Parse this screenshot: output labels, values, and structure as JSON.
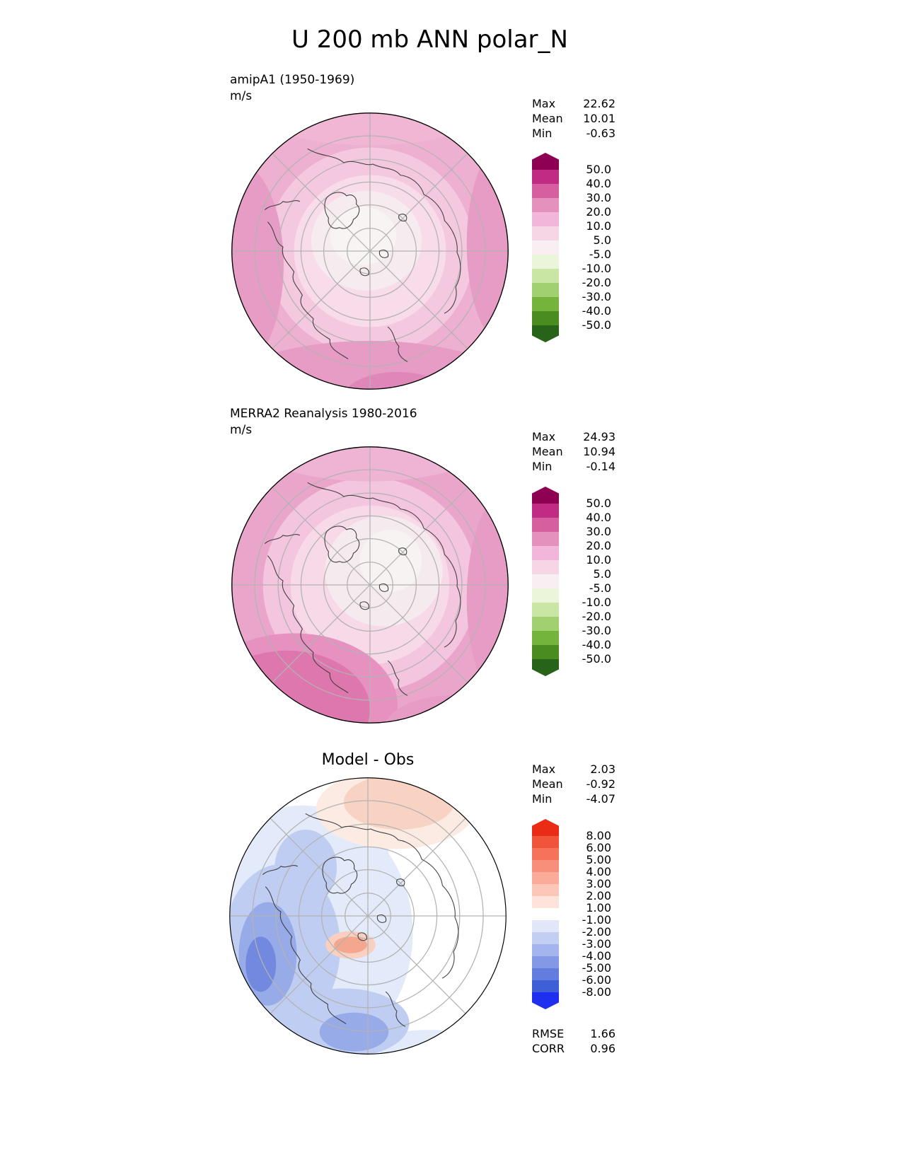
{
  "page_title": "U 200 mb ANN polar_N",
  "chart_data": [
    {
      "type": "heatmap",
      "projection": "north-polar-stereographic",
      "title": "amipA1 (1950-1969)",
      "units": "m/s",
      "stats": [
        {
          "label": "Max",
          "value": "22.62"
        },
        {
          "label": "Mean",
          "value": "10.01"
        },
        {
          "label": "Min",
          "value": "-0.63"
        }
      ],
      "levels": [
        "50.0",
        "40.0",
        "30.0",
        "20.0",
        "10.0",
        "5.0",
        "-5.0",
        "-10.0",
        "-20.0",
        "-30.0",
        "-40.0",
        "-50.0"
      ],
      "colors": [
        "#8e0152",
        "#c02b83",
        "#d6609f",
        "#e591bd",
        "#f1b6da",
        "#f6d5e5",
        "#f8eff3",
        "#eaf5da",
        "#c9e6a4",
        "#a0d070",
        "#74b33c",
        "#4a8c20",
        "#276419"
      ],
      "legend_position": "right",
      "grid": true
    },
    {
      "type": "heatmap",
      "projection": "north-polar-stereographic",
      "title": "MERRA2 Reanalysis 1980-2016",
      "units": "m/s",
      "stats": [
        {
          "label": "Max",
          "value": "24.93"
        },
        {
          "label": "Mean",
          "value": "10.94"
        },
        {
          "label": "Min",
          "value": "-0.14"
        }
      ],
      "levels": [
        "50.0",
        "40.0",
        "30.0",
        "20.0",
        "10.0",
        "5.0",
        "-5.0",
        "-10.0",
        "-20.0",
        "-30.0",
        "-40.0",
        "-50.0"
      ],
      "colors": [
        "#8e0152",
        "#c02b83",
        "#d6609f",
        "#e591bd",
        "#f1b6da",
        "#f6d5e5",
        "#f8eff3",
        "#eaf5da",
        "#c9e6a4",
        "#a0d070",
        "#74b33c",
        "#4a8c20",
        "#276419"
      ],
      "legend_position": "right",
      "grid": true
    },
    {
      "type": "heatmap",
      "projection": "north-polar-stereographic",
      "title": "Model - Obs",
      "units": "",
      "stats": [
        {
          "label": "Max",
          "value": "2.03"
        },
        {
          "label": "Mean",
          "value": "-0.92"
        },
        {
          "label": "Min",
          "value": "-4.07"
        }
      ],
      "levels": [
        "8.00",
        "6.00",
        "5.00",
        "4.00",
        "3.00",
        "2.00",
        "1.00",
        "-1.00",
        "-2.00",
        "-3.00",
        "-4.00",
        "-5.00",
        "-6.00",
        "-8.00"
      ],
      "colors": [
        "#ea2c17",
        "#f0553c",
        "#f4735a",
        "#f78f7a",
        "#faab99",
        "#fcc7b9",
        "#fde3da",
        "#ffffff",
        "#e1e7f9",
        "#c3cef3",
        "#a4b4ec",
        "#8499e5",
        "#637dde",
        "#3f5fd6",
        "#1f2ff0"
      ],
      "extra_stats": [
        {
          "label": "RMSE",
          "value": "1.66"
        },
        {
          "label": "CORR",
          "value": "0.96"
        }
      ],
      "legend_position": "right",
      "grid": true
    }
  ]
}
